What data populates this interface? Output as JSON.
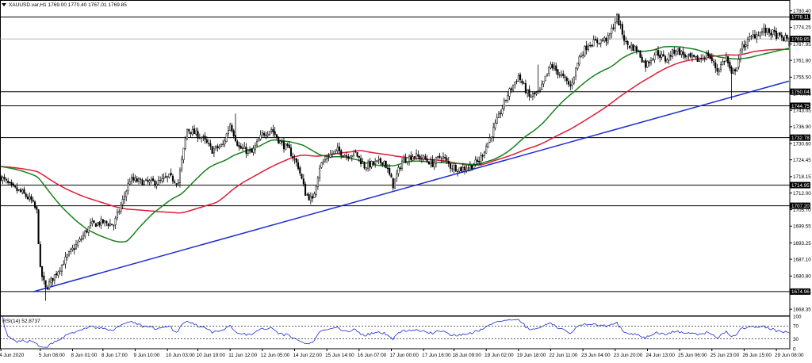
{
  "header": {
    "arrow_icon": "triangle-down-icon",
    "text": "XAUUSD.var,H1  1769.00 1770.40 1767.01 1769.85"
  },
  "rsi_label": "RSI(14) 52.8737",
  "colors": {
    "background": "#ffffff",
    "bull": "#000000",
    "bear": "#000000",
    "ma_fast": "#16821a",
    "ma_slow": "#e11b37",
    "trendline": "#1b2bd6",
    "level_line": "#000000",
    "current_price_line": "#9aa0a6",
    "rsi_line": "#1b2bd6",
    "grid": "#000000"
  },
  "chart_data": [
    {
      "type": "candlestick",
      "symbol": "XAUUSD.var",
      "timeframe": "H1",
      "last": {
        "open": 1769.0,
        "high": 1770.4,
        "low": 1767.01,
        "close": 1769.85
      },
      "y_ticks": [
        1780.4,
        1774.25,
        1767.95,
        1761.8,
        1755.5,
        1749.35,
        1743.05,
        1736.9,
        1730.6,
        1724.45,
        1718.15,
        1712.0,
        1705.7,
        1699.55,
        1693.25,
        1687.1,
        1680.8,
        1674.65,
        1668.35
      ],
      "ylim": [
        1666.0,
        1781.8
      ],
      "x_ticks": [
        {
          "i": 0,
          "label": "4 Jun 2020"
        },
        {
          "i": 22,
          "label": "5 Jun 08:00"
        },
        {
          "i": 40,
          "label": "8 Jun 01:00"
        },
        {
          "i": 57,
          "label": "8 Jun 17:00"
        },
        {
          "i": 75,
          "label": "9 Jun 10:00"
        },
        {
          "i": 93,
          "label": "10 Jun 03:00"
        },
        {
          "i": 110,
          "label": "10 Jun 19:00"
        },
        {
          "i": 128,
          "label": "11 Jun 12:00"
        },
        {
          "i": 146,
          "label": "12 Jun 05:00"
        },
        {
          "i": 164,
          "label": "14 Jun 22:00"
        },
        {
          "i": 182,
          "label": "15 Jun 14:00"
        },
        {
          "i": 200,
          "label": "16 Jun 07:00"
        },
        {
          "i": 218,
          "label": "17 Jun 00:00"
        },
        {
          "i": 236,
          "label": "17 Jun 16:00"
        },
        {
          "i": 253,
          "label": "18 Jun 09:00"
        },
        {
          "i": 271,
          "label": "19 Jun 02:00"
        },
        {
          "i": 289,
          "label": "19 Jun 18:00"
        },
        {
          "i": 307,
          "label": "22 Jun 11:00"
        },
        {
          "i": 325,
          "label": "23 Jun 04:00"
        },
        {
          "i": 343,
          "label": "23 Jun 20:00"
        },
        {
          "i": 361,
          "label": "24 Jun 13:00"
        },
        {
          "i": 379,
          "label": "25 Jun 06:00"
        },
        {
          "i": 397,
          "label": "25 Jun 23:00"
        },
        {
          "i": 415,
          "label": "26 Jun 15:00"
        },
        {
          "i": 433,
          "label": "29 Jun 08:00"
        }
      ],
      "horizontal_levels": [
        1778.11,
        1750.04,
        1744.75,
        1732.78,
        1714.95,
        1707.2,
        1674.96
      ],
      "current_price": 1769.85,
      "trendline": [
        {
          "i": 18,
          "price": 1674.9
        },
        {
          "i": 440,
          "price": 1754.0
        }
      ],
      "price_anchors": [
        [
          0,
          1718
        ],
        [
          6,
          1714
        ],
        [
          12,
          1712
        ],
        [
          17,
          1709
        ],
        [
          20,
          1705
        ],
        [
          22,
          1683
        ],
        [
          25,
          1676
        ],
        [
          30,
          1681
        ],
        [
          38,
          1689
        ],
        [
          44,
          1694
        ],
        [
          50,
          1700
        ],
        [
          57,
          1701
        ],
        [
          63,
          1700
        ],
        [
          68,
          1709
        ],
        [
          72,
          1717
        ],
        [
          80,
          1716
        ],
        [
          88,
          1716
        ],
        [
          94,
          1718
        ],
        [
          99,
          1716
        ],
        [
          104,
          1736
        ],
        [
          112,
          1733
        ],
        [
          118,
          1728
        ],
        [
          124,
          1730
        ],
        [
          128,
          1738
        ],
        [
          133,
          1729
        ],
        [
          140,
          1727
        ],
        [
          146,
          1734
        ],
        [
          151,
          1736
        ],
        [
          156,
          1731
        ],
        [
          161,
          1728
        ],
        [
          166,
          1722
        ],
        [
          170,
          1712
        ],
        [
          174,
          1709
        ],
        [
          178,
          1722
        ],
        [
          183,
          1726
        ],
        [
          188,
          1728
        ],
        [
          193,
          1726
        ],
        [
          198,
          1727
        ],
        [
          203,
          1722
        ],
        [
          208,
          1723
        ],
        [
          214,
          1724
        ],
        [
          219,
          1715
        ],
        [
          224,
          1724
        ],
        [
          230,
          1726
        ],
        [
          236,
          1725
        ],
        [
          241,
          1723
        ],
        [
          246,
          1726
        ],
        [
          251,
          1722
        ],
        [
          257,
          1721
        ],
        [
          262,
          1722
        ],
        [
          267,
          1724
        ],
        [
          272,
          1731
        ],
        [
          277,
          1739
        ],
        [
          283,
          1749
        ],
        [
          289,
          1756
        ],
        [
          295,
          1748
        ],
        [
          301,
          1750
        ],
        [
          307,
          1760
        ],
        [
          313,
          1756
        ],
        [
          318,
          1752
        ],
        [
          323,
          1763
        ],
        [
          328,
          1768
        ],
        [
          334,
          1769
        ],
        [
          339,
          1770
        ],
        [
          344,
          1778
        ],
        [
          349,
          1768
        ],
        [
          355,
          1766
        ],
        [
          360,
          1760
        ],
        [
          366,
          1765
        ],
        [
          371,
          1762
        ],
        [
          377,
          1766
        ],
        [
          383,
          1763
        ],
        [
          389,
          1762
        ],
        [
          395,
          1764
        ],
        [
          400,
          1758
        ],
        [
          405,
          1763
        ],
        [
          408,
          1756
        ],
        [
          411,
          1760
        ],
        [
          414,
          1767
        ],
        [
          420,
          1771
        ],
        [
          426,
          1773
        ],
        [
          431,
          1772
        ],
        [
          436,
          1770
        ],
        [
          440,
          1770
        ]
      ],
      "ma_fast_period": 50,
      "ma_slow_period": 100
    },
    {
      "type": "line",
      "name": "RSI(14)",
      "last_value": 52.8737,
      "ylim": [
        0,
        100
      ],
      "y_ticks": [
        100,
        70,
        30,
        0
      ],
      "levels": [
        70,
        30
      ]
    }
  ]
}
